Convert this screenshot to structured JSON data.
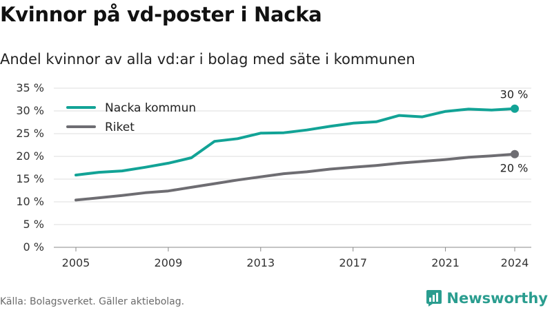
{
  "title": "Kvinnor på vd-poster i Nacka",
  "subtitle": "Andel kvinnor av alla vd:ar i bolag med säte i kommunen",
  "source": "Källa: Bolagsverket. Gäller aktiebolag.",
  "brand": {
    "name": "Newsworthy",
    "icon": "newsworthy-logo-icon"
  },
  "colors": {
    "nacka": "#12a396",
    "riket": "#6e6d72",
    "grid": "#dcdcdc",
    "axis": "#888888"
  },
  "chart_data": {
    "type": "line",
    "x": [
      2005,
      2006,
      2007,
      2008,
      2009,
      2010,
      2011,
      2012,
      2013,
      2014,
      2015,
      2016,
      2017,
      2018,
      2019,
      2020,
      2021,
      2022,
      2023,
      2024
    ],
    "x_ticks": [
      2005,
      2009,
      2013,
      2017,
      2021,
      2024
    ],
    "y_ticks": [
      0,
      5,
      10,
      15,
      20,
      25,
      30,
      35
    ],
    "y_tick_suffix": " %",
    "ylim": [
      0,
      35
    ],
    "xlabel": "",
    "ylabel": "",
    "grid": true,
    "legend_position": "top-left",
    "series": [
      {
        "name": "Nacka kommun",
        "color_key": "nacka",
        "values": [
          15.9,
          16.5,
          16.8,
          17.6,
          18.5,
          19.7,
          23.3,
          23.9,
          25.1,
          25.2,
          25.8,
          26.6,
          27.3,
          27.6,
          29.0,
          28.7,
          29.9,
          30.4,
          30.2,
          30.5
        ],
        "end_label": "30 %"
      },
      {
        "name": "Riket",
        "color_key": "riket",
        "values": [
          10.4,
          10.9,
          11.4,
          12.0,
          12.4,
          13.2,
          14.0,
          14.8,
          15.5,
          16.2,
          16.6,
          17.2,
          17.6,
          18.0,
          18.5,
          18.9,
          19.3,
          19.8,
          20.1,
          20.5
        ],
        "end_label": "20 %"
      }
    ]
  }
}
